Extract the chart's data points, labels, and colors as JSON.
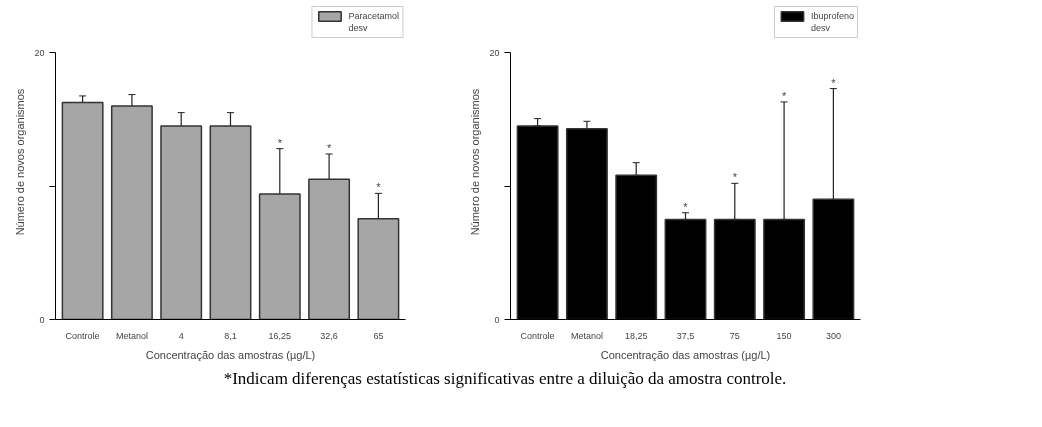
{
  "chart_data": [
    {
      "type": "bar",
      "xlabel": "Concentração das amostras (µg/L)",
      "ylabel": "Número de novos organismos",
      "categories": [
        "Controle",
        "Metanol",
        "4",
        "8,1",
        "16,25",
        "32,6",
        "65"
      ],
      "series": [
        {
          "name": "Paracetamol",
          "color": "#a6a6a6",
          "values": [
            16.25,
            16.0,
            14.5,
            14.5,
            9.4,
            10.5,
            7.55
          ],
          "errors": [
            0.5,
            0.85,
            1.0,
            1.0,
            3.4,
            1.9,
            1.9
          ]
        }
      ],
      "ylim": [
        0,
        20
      ],
      "yticks": [
        0,
        {
          "value": 10,
          "label": null
        },
        20
      ],
      "grid": false,
      "legend": "top right",
      "annotations": [
        "desv",
        {
          "text": "*",
          "x": "16,25",
          "y": 12.8
        },
        {
          "text": "*",
          "x": "32,6",
          "y": 12.4
        },
        {
          "text": "*",
          "x": "65",
          "y": 9.45
        }
      ]
    },
    {
      "type": "bar",
      "xlabel": "Concentração das amostras (µg/L)",
      "ylabel": "Número de novos organismos",
      "categories": [
        "Controle",
        "Metanol",
        "18,25",
        "37,5",
        "75",
        "150",
        "300"
      ],
      "series": [
        {
          "name": "Ibuprofeno",
          "color": "#000000",
          "values": [
            14.5,
            14.3,
            10.8,
            7.5,
            7.5,
            7.5,
            9.0
          ],
          "errors": [
            [
              14.5,
              15.05
            ],
            [
              14.3,
              14.85
            ],
            [
              10.8,
              11.75
            ],
            [
              7.5,
              8.0
            ],
            [
              7.5,
              10.2
            ],
            [
              7.5,
              16.3
            ],
            [
              9.0,
              17.3
            ]
          ]
        }
      ],
      "ylim": [
        0,
        20
      ],
      "yticks": [
        0,
        {
          "value": 10,
          "label": null
        },
        20
      ],
      "grid": false,
      "legend": "top right",
      "annotations": [
        "desv",
        {
          "text": "*",
          "x": "37,5",
          "y": 8.0
        },
        {
          "text": "*",
          "x": "75",
          "y": 10.2
        },
        {
          "text": "*",
          "x": "150",
          "y": 16.3
        },
        {
          "text": "*",
          "x": "300",
          "y": 17.3
        },
        "*Indicam diferenças estatísticas significativas entre a diluição da amostra controle."
      ]
    }
  ]
}
